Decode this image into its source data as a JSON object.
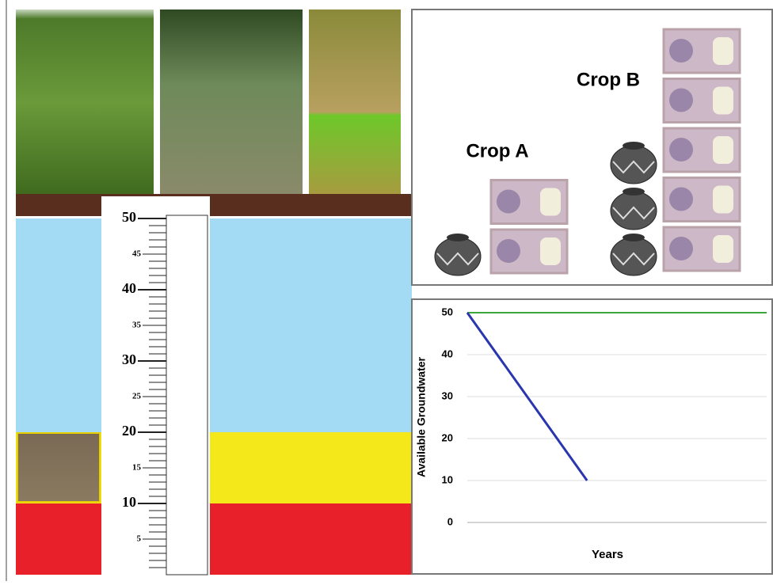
{
  "gauge": {
    "ylim": [
      0,
      50
    ],
    "ticks": [
      5,
      10,
      15,
      20,
      25,
      30,
      35,
      40,
      45,
      50
    ],
    "bands": [
      {
        "from": 0,
        "to": 10,
        "color": "#e8202a"
      },
      {
        "from": 10,
        "to": 20,
        "color": "#f4e81a"
      },
      {
        "from": 20,
        "to": 50,
        "color": "#a3dbf4"
      }
    ]
  },
  "crops": [
    {
      "name": "Crop A",
      "water": 1,
      "money": 2
    },
    {
      "name": "Crop B",
      "water": 3,
      "money": 5
    }
  ],
  "chart_data": {
    "type": "line",
    "xlabel": "Years",
    "ylabel": "Available Groundwater",
    "xlim": [
      0,
      10
    ],
    "ylim": [
      0,
      50
    ],
    "yticks": [
      0,
      10,
      20,
      30,
      40,
      50
    ],
    "grid": true,
    "series": [
      {
        "color": "#3ba63b",
        "x": [
          0,
          10
        ],
        "values": [
          50,
          50
        ]
      },
      {
        "color": "#2a35b0",
        "x": [
          0,
          4
        ],
        "values": [
          50,
          10
        ]
      }
    ]
  }
}
